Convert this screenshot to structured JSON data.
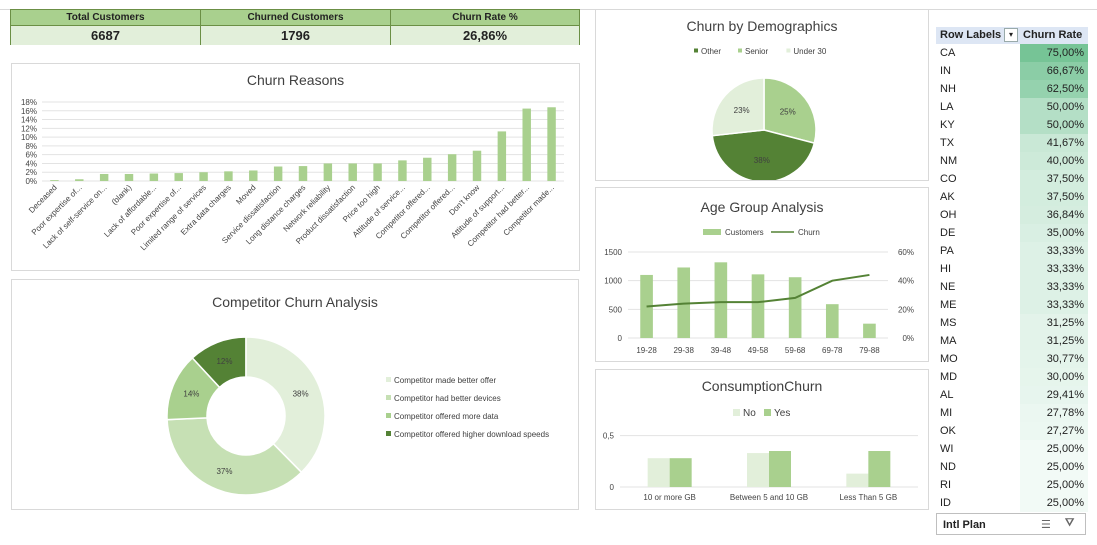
{
  "kpis": [
    {
      "label": "Total Customers",
      "value": "6687"
    },
    {
      "label": "Churned Customers",
      "value": "1796"
    },
    {
      "label": "Churn Rate %",
      "value": "26,86%"
    }
  ],
  "churn_reasons_panel": {
    "title": "Churn Reasons"
  },
  "demographics_panel": {
    "title": "Churn by Demographics",
    "legend": [
      "Other",
      "Senior",
      "Under 30"
    ]
  },
  "age_panel": {
    "title": "Age Group Analysis",
    "legend": [
      "Customers",
      "Churn"
    ]
  },
  "competitor_panel": {
    "title": "Competitor Churn Analysis"
  },
  "consumption_panel": {
    "title": "ConsumptionChurn",
    "legend": [
      "No",
      "Yes"
    ]
  },
  "chart_data": [
    {
      "type": "bar",
      "title": "Churn Reasons",
      "categories": [
        "Deceased",
        "Poor expertise of...",
        "Lack of self-service on...",
        "(blank)",
        "Lack of affordable...",
        "Poor expertise of...",
        "Limited range of services",
        "Extra data charges",
        "Moved",
        "Service dissatisfaction",
        "Long distance charges",
        "Network reliability",
        "Product dissatisfaction",
        "Price too high",
        "Attitude of service...",
        "Competitor offered...",
        "Competitor offered...",
        "Don't know",
        "Attitude of support...",
        "Competitor had better...",
        "Competitor made..."
      ],
      "values": [
        0.2,
        0.4,
        1.6,
        1.6,
        1.7,
        1.8,
        2.0,
        2.2,
        2.4,
        3.3,
        3.4,
        4.0,
        4.0,
        4.0,
        4.7,
        5.3,
        6.1,
        6.9,
        11.3,
        16.5,
        16.8
      ],
      "yticks": [
        "0%",
        "2%",
        "4%",
        "6%",
        "8%",
        "10%",
        "12%",
        "14%",
        "16%",
        "18%"
      ],
      "ylim": [
        0,
        18
      ]
    },
    {
      "type": "pie",
      "title": "Churn by Demographics",
      "categories": [
        "Other",
        "Senior",
        "Under 30"
      ],
      "values": [
        38,
        25,
        23
      ],
      "labels": [
        "38%",
        "25%",
        "23%"
      ],
      "colors": [
        "#548235",
        "#a9d08e",
        "#e2efda"
      ]
    },
    {
      "type": "bar",
      "title": "Age Group Analysis",
      "categories": [
        "19-28",
        "29-38",
        "39-48",
        "49-58",
        "59-68",
        "69-78",
        "79-88"
      ],
      "series": [
        {
          "name": "Customers",
          "type": "bar",
          "values": [
            1100,
            1230,
            1320,
            1110,
            1060,
            590,
            250
          ]
        },
        {
          "name": "Churn",
          "type": "line",
          "values": [
            22,
            24,
            25,
            25,
            28,
            40,
            44
          ]
        }
      ],
      "ylim": [
        0,
        1500
      ],
      "yticks": [
        "0",
        "500",
        "1000",
        "1500"
      ],
      "y2lim": [
        0,
        60
      ],
      "y2ticks": [
        "0%",
        "20%",
        "40%",
        "60%"
      ]
    },
    {
      "type": "pie",
      "title": "Competitor Churn Analysis",
      "categories": [
        "Competitor made better offer",
        "Competitor had better devices",
        "Competitor offered more data",
        "Competitor offered higher download speeds"
      ],
      "values": [
        38,
        37,
        14,
        12
      ],
      "labels": [
        "38%",
        "37%",
        "14%",
        "12%"
      ],
      "colors": [
        "#e2efda",
        "#c6e0b4",
        "#a9d08e",
        "#548235"
      ]
    },
    {
      "type": "bar",
      "title": "ConsumptionChurn",
      "categories": [
        "10 or more GB",
        "Between 5 and 10 GB",
        "Less Than 5 GB"
      ],
      "series": [
        {
          "name": "No",
          "values": [
            0.28,
            0.33,
            0.13
          ]
        },
        {
          "name": "Yes",
          "values": [
            0.28,
            0.35,
            0.35
          ]
        }
      ],
      "ylim": [
        0,
        0.7
      ],
      "yticks": [
        "0",
        "0,5"
      ]
    }
  ],
  "pivot": {
    "headers": [
      "Row Labels",
      "Churn Rate"
    ],
    "rows": [
      {
        "state": "CA",
        "rate": "75,00%",
        "value": 75.0
      },
      {
        "state": "IN",
        "rate": "66,67%",
        "value": 66.67
      },
      {
        "state": "NH",
        "rate": "62,50%",
        "value": 62.5
      },
      {
        "state": "LA",
        "rate": "50,00%",
        "value": 50.0
      },
      {
        "state": "KY",
        "rate": "50,00%",
        "value": 50.0
      },
      {
        "state": "TX",
        "rate": "41,67%",
        "value": 41.67
      },
      {
        "state": "NM",
        "rate": "40,00%",
        "value": 40.0
      },
      {
        "state": "CO",
        "rate": "37,50%",
        "value": 37.5
      },
      {
        "state": "AK",
        "rate": "37,50%",
        "value": 37.5
      },
      {
        "state": "OH",
        "rate": "36,84%",
        "value": 36.84
      },
      {
        "state": "DE",
        "rate": "35,00%",
        "value": 35.0
      },
      {
        "state": "PA",
        "rate": "33,33%",
        "value": 33.33
      },
      {
        "state": "HI",
        "rate": "33,33%",
        "value": 33.33
      },
      {
        "state": "NE",
        "rate": "33,33%",
        "value": 33.33
      },
      {
        "state": "ME",
        "rate": "33,33%",
        "value": 33.33
      },
      {
        "state": "MS",
        "rate": "31,25%",
        "value": 31.25
      },
      {
        "state": "MA",
        "rate": "31,25%",
        "value": 31.25
      },
      {
        "state": "MO",
        "rate": "30,77%",
        "value": 30.77
      },
      {
        "state": "MD",
        "rate": "30,00%",
        "value": 30.0
      },
      {
        "state": "AL",
        "rate": "29,41%",
        "value": 29.41
      },
      {
        "state": "MI",
        "rate": "27,78%",
        "value": 27.78
      },
      {
        "state": "OK",
        "rate": "27,27%",
        "value": 27.27
      },
      {
        "state": "WI",
        "rate": "25,00%",
        "value": 25.0
      },
      {
        "state": "ND",
        "rate": "25,00%",
        "value": 25.0
      },
      {
        "state": "RI",
        "rate": "25,00%",
        "value": 25.0
      },
      {
        "state": "ID",
        "rate": "25,00%",
        "value": 25.0
      }
    ]
  },
  "slicer": {
    "title": "Intl Plan",
    "multiselect_icon": "multi-select-icon",
    "clear_icon": "clear-filter-icon"
  },
  "colors": {
    "accent": "#a9d08e",
    "dark": "#548235",
    "light": "#e2efda",
    "pivot_header": "#dde6f4"
  }
}
